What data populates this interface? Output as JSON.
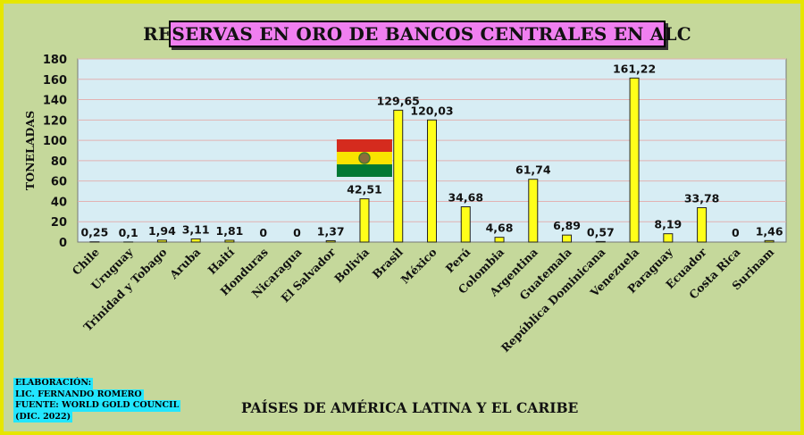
{
  "title": "RESERVAS EN ORO DE BANCOS CENTRALES EN ALC",
  "credits": {
    "line1": "ELABORACIÓN:",
    "line2": "LIC. FERNANDO ROMERO",
    "line3": "FUENTE: WORLD GOLD COUNCIL",
    "line4": "(DIC. 2022)"
  },
  "colors": {
    "background": "#c5d89b",
    "border": "#e6e600",
    "title_box": "#f07ff0",
    "plot_area": "#d7edf4",
    "bars": "#ffff1a",
    "credits_highlight": "#22e6ff"
  },
  "chart_data": {
    "type": "bar",
    "xlabel": "PAÍSES DE AMÉRICA LATINA Y EL CARIBE",
    "ylabel": "TONELADAS",
    "ylim": [
      0,
      180
    ],
    "yticks": [
      0,
      20,
      40,
      60,
      80,
      100,
      120,
      140,
      160,
      180
    ],
    "grid": true,
    "categories": [
      "Chile",
      "Uruguay",
      "Trinidad y Tobago",
      "Aruba",
      "Haití",
      "Honduras",
      "Nicaragua",
      "El Salvador",
      "Bolivia",
      "Brasil",
      "México",
      "Perú",
      "Colombia",
      "Argentina",
      "Guatemala",
      "República Dominicana",
      "Venezuela",
      "Paraguay",
      "Ecuador",
      "Costa Rica",
      "Surinam"
    ],
    "values": [
      0.25,
      0.1,
      1.94,
      3.11,
      1.81,
      0,
      0,
      1.37,
      42.51,
      129.65,
      120.03,
      34.68,
      4.68,
      61.74,
      6.89,
      0.57,
      161.22,
      8.19,
      33.78,
      0,
      1.46
    ],
    "data_labels": [
      "0,25",
      "0,1",
      "1,94",
      "3,11",
      "1,81",
      "0",
      "0",
      "1,37",
      "42,51",
      "129,65",
      "120,03",
      "34,68",
      "4,68",
      "61,74",
      "6,89",
      "0,57",
      "161,22",
      "8,19",
      "33,78",
      "0",
      "1,46"
    ],
    "highlight_icon": "bolivia-flag"
  }
}
